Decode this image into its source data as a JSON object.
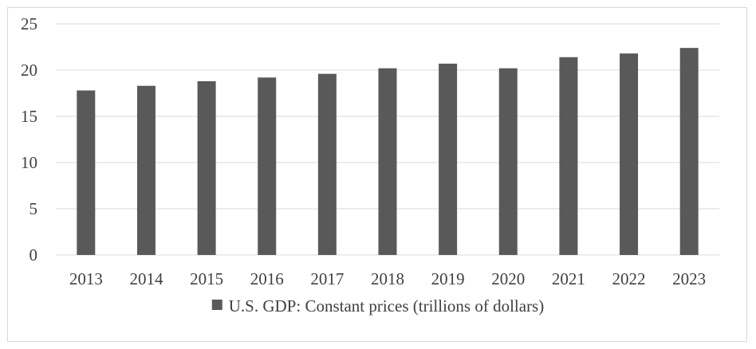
{
  "chart_data": {
    "type": "bar",
    "title": "",
    "xlabel": "",
    "ylabel": "",
    "categories": [
      "2013",
      "2014",
      "2015",
      "2016",
      "2017",
      "2018",
      "2019",
      "2020",
      "2021",
      "2022",
      "2023"
    ],
    "series": [
      {
        "name": "U.S. GDP: Constant prices (trillions of dollars)",
        "values": [
          17.8,
          18.3,
          18.8,
          19.2,
          19.6,
          20.2,
          20.7,
          20.2,
          21.4,
          21.8,
          22.4
        ],
        "color": "#595959"
      }
    ],
    "ylim": [
      0,
      25
    ],
    "yticks": [
      0,
      5,
      10,
      15,
      20,
      25
    ],
    "grid": true,
    "legend_position": "bottom"
  }
}
